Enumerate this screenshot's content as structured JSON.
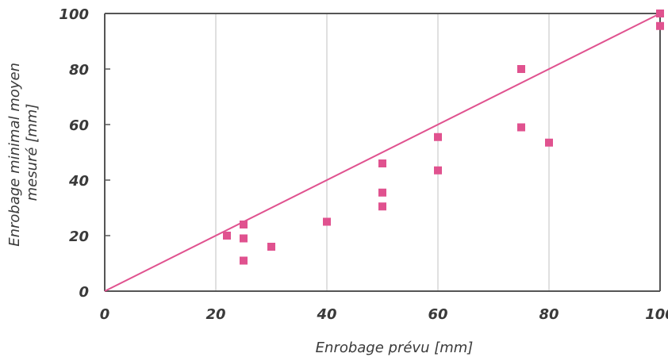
{
  "chart_data": {
    "type": "scatter",
    "title": "",
    "xlabel": "Enrobage prévu  [mm]",
    "ylabel_lines": [
      "Enrobage minimal moyen",
      "mesuré [mm]"
    ],
    "xlim": [
      0,
      100
    ],
    "ylim": [
      0,
      100
    ],
    "xticks": [
      "0",
      "20",
      "40",
      "60",
      "80",
      "100"
    ],
    "yticks": [
      "0",
      "20",
      "40",
      "60",
      "80",
      "100"
    ],
    "grid": "vertical",
    "series": [
      {
        "points": [
          {
            "x": 22,
            "y": 20
          },
          {
            "x": 25,
            "y": 24
          },
          {
            "x": 25,
            "y": 19
          },
          {
            "x": 25,
            "y": 11
          },
          {
            "x": 30,
            "y": 16
          },
          {
            "x": 40,
            "y": 25
          },
          {
            "x": 50,
            "y": 46
          },
          {
            "x": 50,
            "y": 35.5
          },
          {
            "x": 50,
            "y": 30.5
          },
          {
            "x": 60,
            "y": 55.5
          },
          {
            "x": 60,
            "y": 43.5
          },
          {
            "x": 75,
            "y": 80
          },
          {
            "x": 75,
            "y": 59
          },
          {
            "x": 80,
            "y": 53.5
          },
          {
            "x": 100,
            "y": 100
          },
          {
            "x": 100,
            "y": 95.5
          }
        ]
      }
    ],
    "reference_line": {
      "x": [
        0,
        100
      ],
      "y": [
        0,
        100
      ]
    },
    "colors": {
      "marker": "#e0528f",
      "line": "#e0528f",
      "axis": "#555555",
      "grid": "#cccccc",
      "text": "#3a3a3a"
    }
  }
}
